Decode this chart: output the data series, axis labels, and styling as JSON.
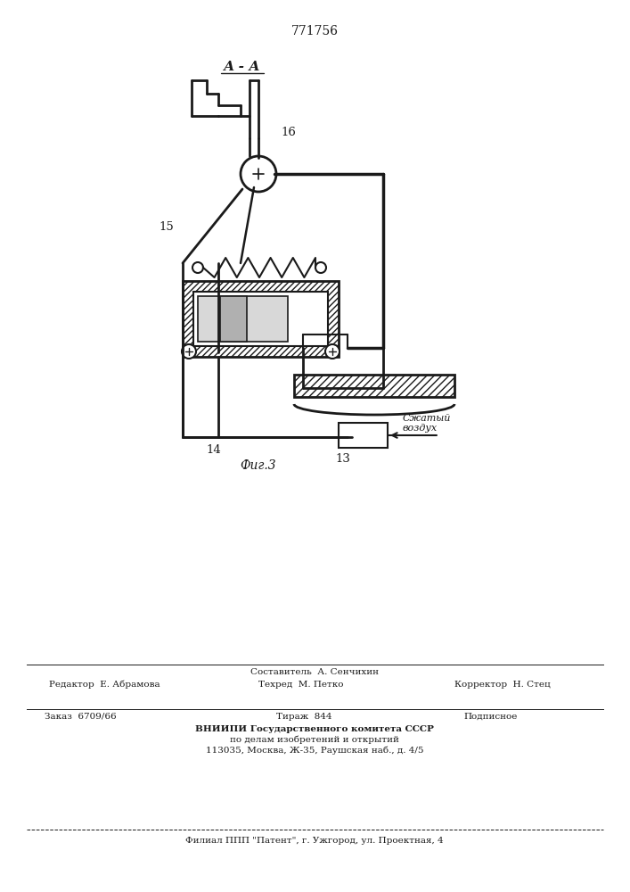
{
  "patent_number": "771756",
  "section_label": "А - А",
  "fig_label": "Фиг.3",
  "label_16": "16",
  "label_15": "15",
  "label_14": "14",
  "label_13": "13",
  "compressed_air_text1": "Сжатый",
  "compressed_air_text2": "воздух",
  "line_color": "#1a1a1a",
  "footer_line1_left": "Редактор  Е. Абрамова",
  "footer_line1_center": "Составитель  А. Сенчихин",
  "footer_line1_center2": "Техред  М. Петко",
  "footer_line1_right": "Корректор  Н. Стец",
  "footer_line2_col1": "Заказ  6709/66",
  "footer_line2_col2": "Тираж  844",
  "footer_line2_col3": "Подписное",
  "footer_line3": "ВНИИПИ Государственного комитета СССР",
  "footer_line4": "по делам изобретений и открытий",
  "footer_line5": "113035, Москва, Ж-35, Раушская наб., д. 4/5",
  "footer_line6": "Филиал ППП \"Патент\", г. Ужгород, ул. Проектная, 4"
}
